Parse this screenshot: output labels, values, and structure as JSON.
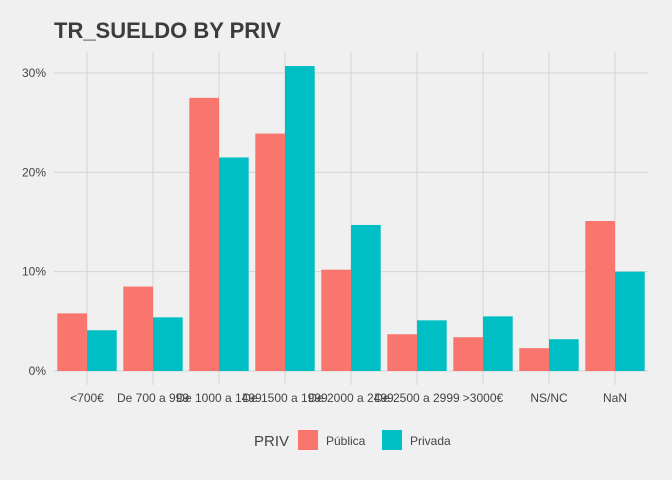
{
  "chart_data": {
    "type": "bar",
    "title": "TR_SUELDO BY PRIV",
    "xlabel": "",
    "ylabel": "",
    "categories": [
      "<700€",
      "De 700 a 999",
      "De 1000 a 1499",
      "De 1500 a 1999",
      "De 2000 a 2499",
      "De 2500 a 2999",
      ">3000€",
      "NS/NC",
      "NaN"
    ],
    "legend_title": "PRIV",
    "legend_position": "bottom",
    "grid": true,
    "ylim": [
      0,
      32
    ],
    "yticks": [
      0,
      10,
      20,
      30
    ],
    "ytick_labels": [
      "0%",
      "10%",
      "20%",
      "30%"
    ],
    "series": [
      {
        "name": "Pública",
        "color": "#f8766d",
        "values": [
          5.8,
          8.5,
          27.5,
          23.9,
          10.2,
          3.7,
          3.4,
          2.3,
          15.1
        ]
      },
      {
        "name": "Privada",
        "color": "#00bfc4",
        "values": [
          4.1,
          5.4,
          21.5,
          30.7,
          14.7,
          5.1,
          5.5,
          3.2,
          10.0
        ]
      }
    ]
  }
}
